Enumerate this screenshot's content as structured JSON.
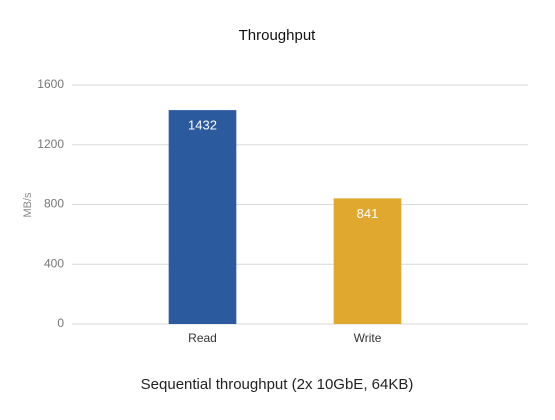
{
  "chart_data": {
    "type": "bar",
    "title": "Throughput",
    "y_label": "MB/s",
    "x_label": "Sequential throughput (2x 10GbE, 64KB)",
    "categories": [
      "Read",
      "Write"
    ],
    "values": [
      1432,
      841
    ],
    "colors": [
      "#2b5a9e",
      "#e0a82e"
    ],
    "ylim": [
      0,
      1600
    ],
    "yticks": [
      0,
      400,
      800,
      1200,
      1600
    ],
    "grid": true
  }
}
